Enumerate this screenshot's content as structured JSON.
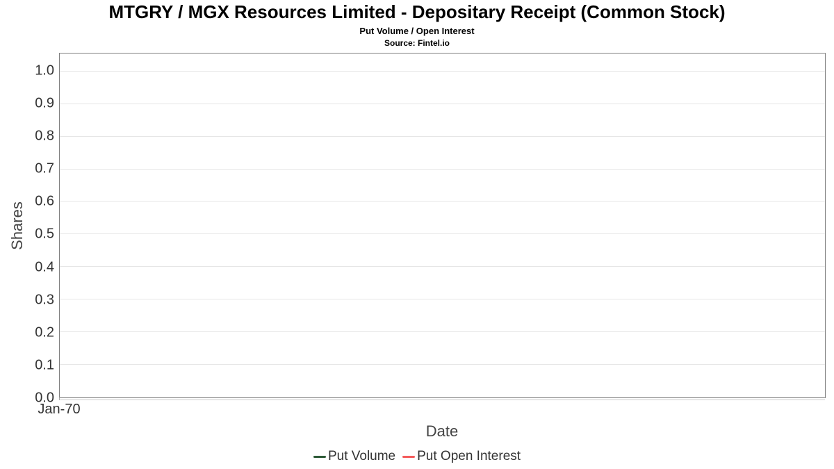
{
  "chart_data": {
    "type": "line",
    "title": "MTGRY / MGX Resources Limited - Depositary Receipt (Common Stock)",
    "subtitle": "Put Volume / Open Interest",
    "source_note": "Source: Fintel.io",
    "xlabel": "Date",
    "ylabel": "Shares",
    "x_tick_labels": [
      {
        "label": "Jan-70",
        "position": 0
      }
    ],
    "y_ticks": [
      "0.0",
      "0.1",
      "0.2",
      "0.3",
      "0.4",
      "0.5",
      "0.6",
      "0.7",
      "0.8",
      "0.9",
      "1.0"
    ],
    "ylim": [
      0,
      1.055
    ],
    "series": [
      {
        "name": "Put Volume",
        "color": "#2d5a37",
        "values": []
      },
      {
        "name": "Put Open Interest",
        "color": "#f45b5b",
        "values": []
      }
    ],
    "grid": "horizontal-only",
    "gridline_color": "#e6e6e6",
    "plot_border_color": "#808080",
    "plot_background": "#ffffff",
    "legend_position": "bottom-center"
  }
}
